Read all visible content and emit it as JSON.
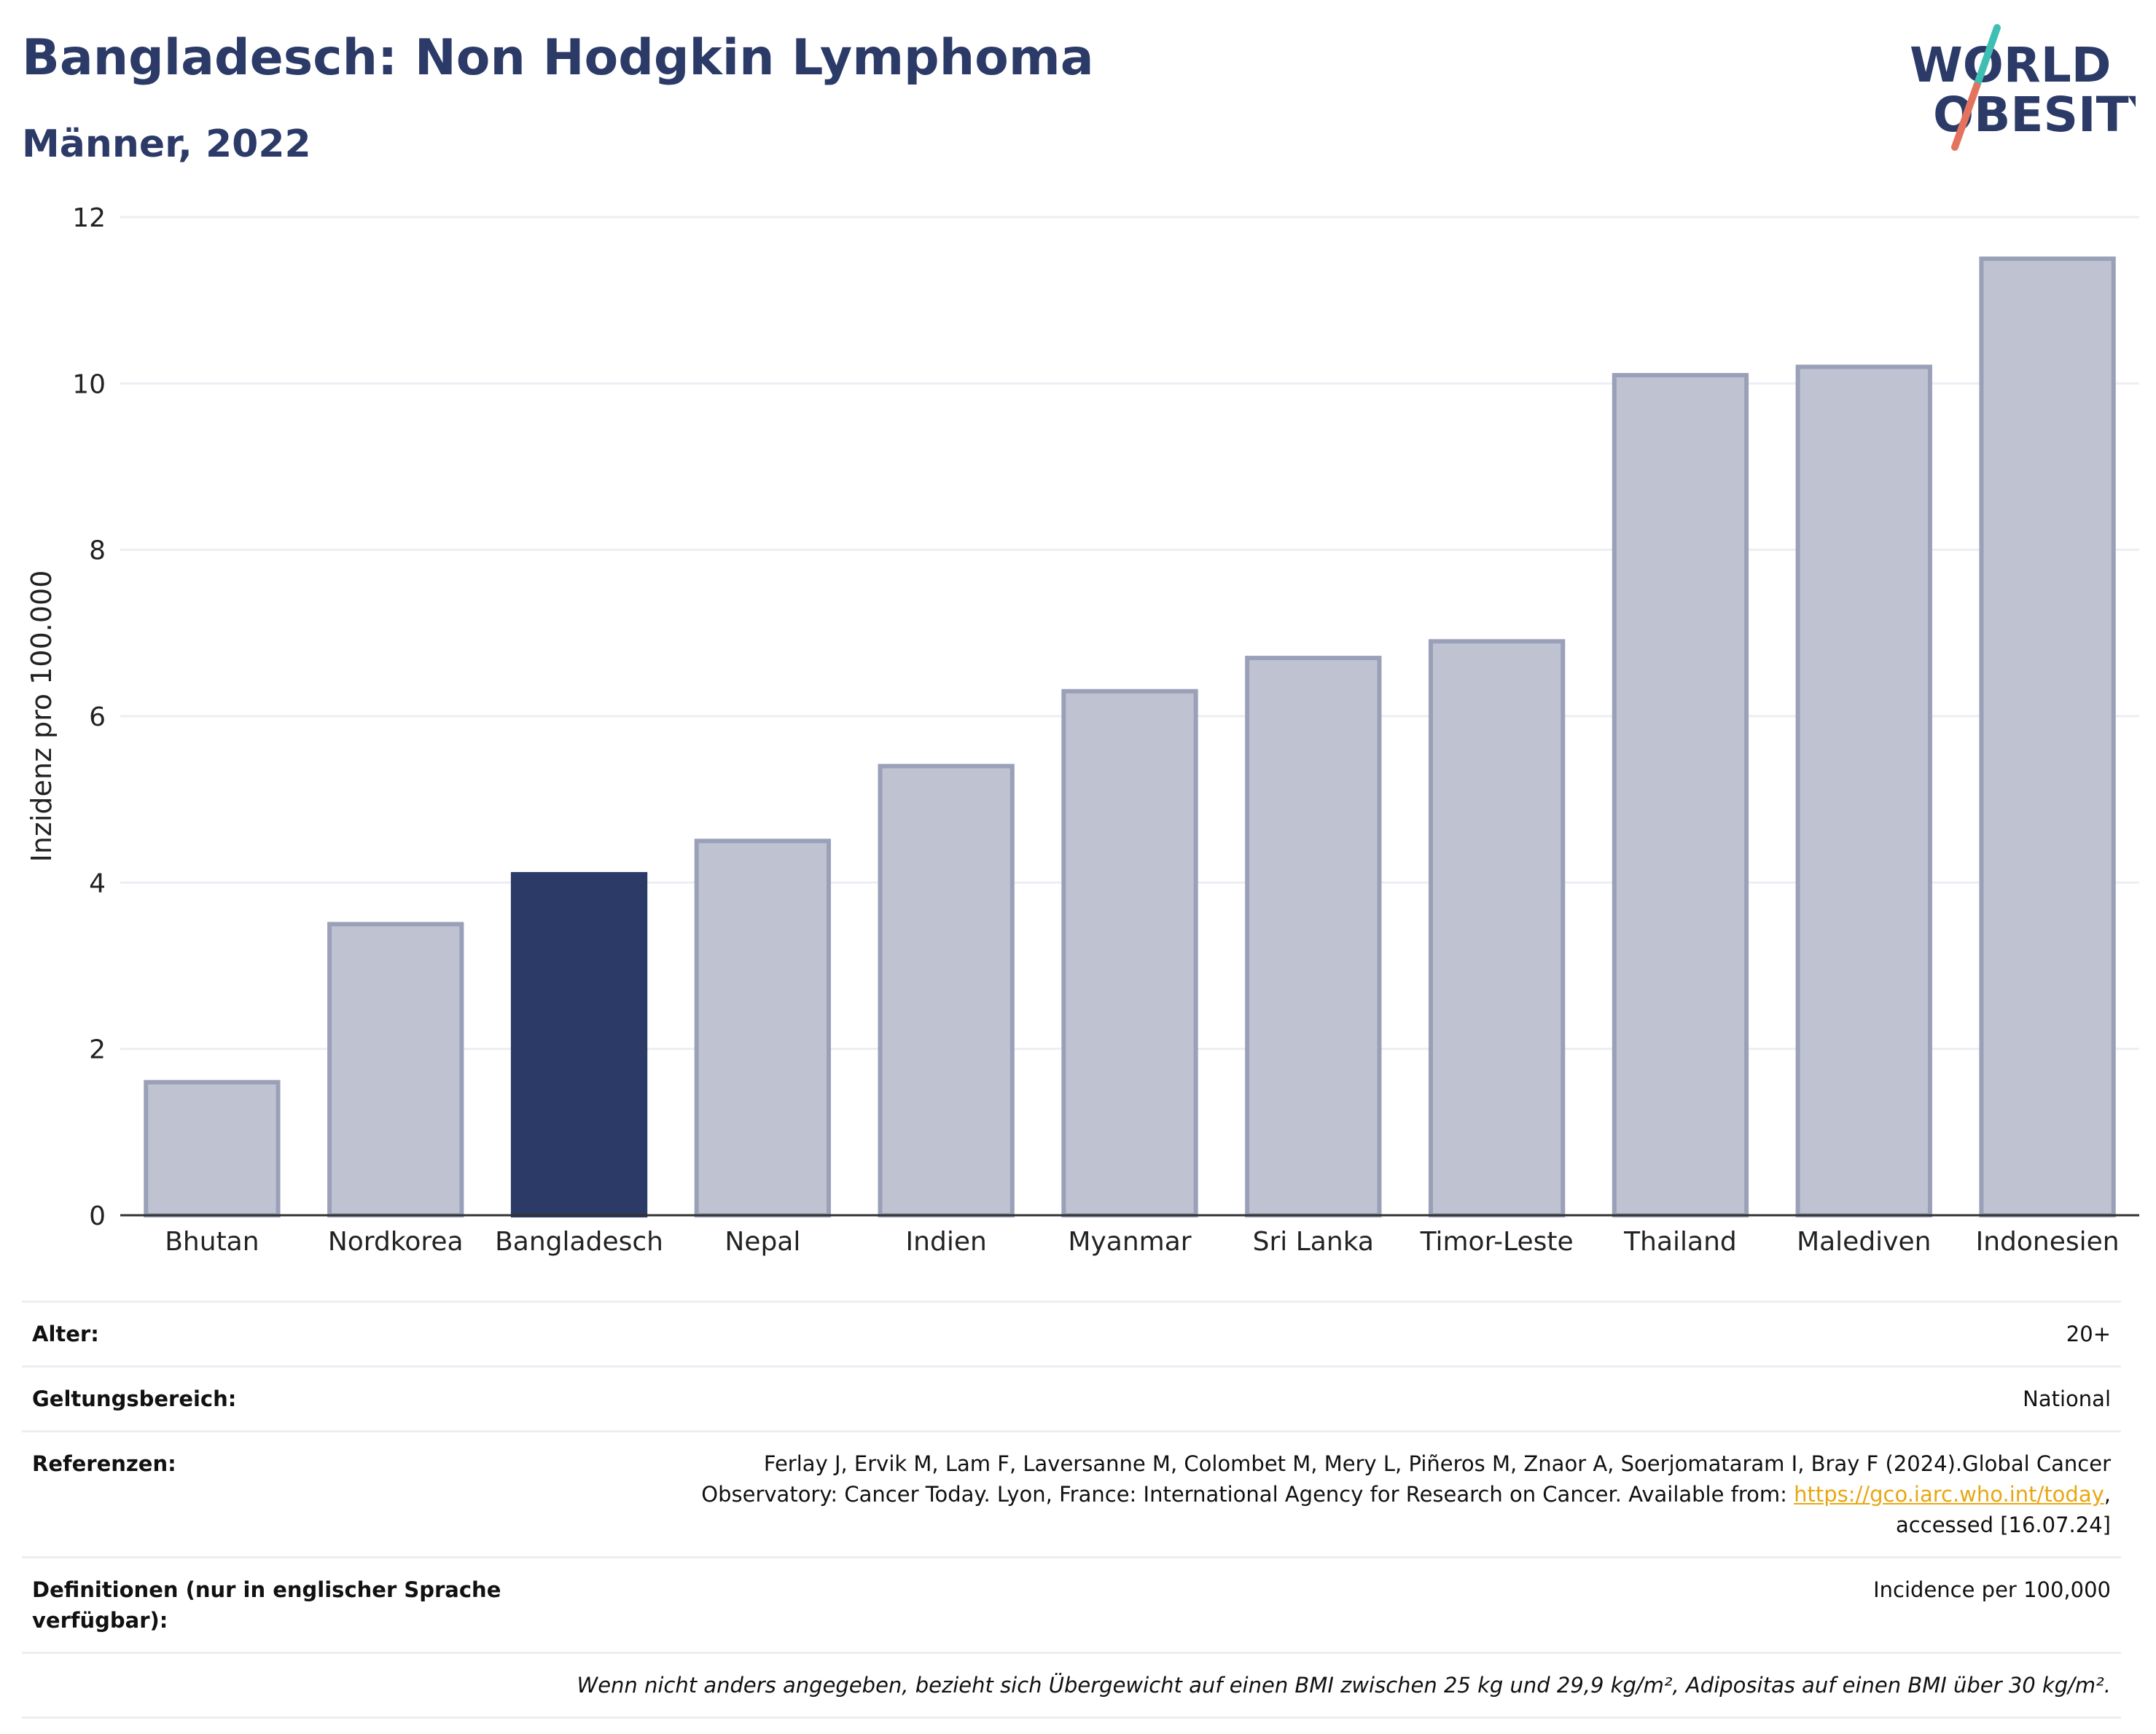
{
  "header": {
    "title": "Bangladesch: Non Hodgkin Lymphoma",
    "subtitle": "Männer, 2022",
    "logo_line1": "WORLD",
    "logo_line2": "OBESITY"
  },
  "colors": {
    "highlight": "#2b3a67",
    "bar_fill": "#bfc3d1",
    "bar_stroke": "#9aa0b8",
    "grid": "#eceef3",
    "logo_slash_teal": "#3fbfb4",
    "logo_slash_red": "#e4735e"
  },
  "chart_data": {
    "type": "bar",
    "ylabel": "Inzidenz pro 100.000",
    "xlabel": "",
    "ylim": [
      0,
      12
    ],
    "yticks": [
      0,
      2,
      4,
      6,
      8,
      10,
      12
    ],
    "grid": true,
    "categories": [
      "Bhutan",
      "Nordkorea",
      "Bangladesch",
      "Nepal",
      "Indien",
      "Myanmar",
      "Sri Lanka",
      "Timor-Leste",
      "Thailand",
      "Malediven",
      "Indonesien"
    ],
    "values": [
      1.6,
      3.5,
      4.1,
      4.5,
      5.4,
      6.3,
      6.7,
      6.9,
      10.1,
      10.2,
      11.5
    ],
    "highlight": "Bangladesch"
  },
  "meta": {
    "age_label": "Alter:",
    "age_value": "20+",
    "scope_label": "Geltungsbereich:",
    "scope_value": "National",
    "refs_label": "Referenzen:",
    "refs_line1": "Ferlay J, Ervik M, Lam F, Laversanne M, Colombet M, Mery L, Piñeros M, Znaor A, Soerjomataram I, Bray F (2024).Global Cancer",
    "refs_line2_pre": "Observatory: Cancer Today. Lyon, France: International Agency for Research on Cancer. Available from: ",
    "refs_link": "https://gco.iarc.who.int/today",
    "refs_line2_post": ",",
    "refs_line3": "accessed [16.07.24]",
    "def_label": "Definitionen (nur in englischer Sprache verfügbar):",
    "def_value": "Incidence per 100,000",
    "note": "Wenn nicht anders angegeben, bezieht sich Übergewicht auf einen BMI zwischen 25 kg und 29,9 kg/m², Adipositas auf einen BMI über 30 kg/m²."
  }
}
